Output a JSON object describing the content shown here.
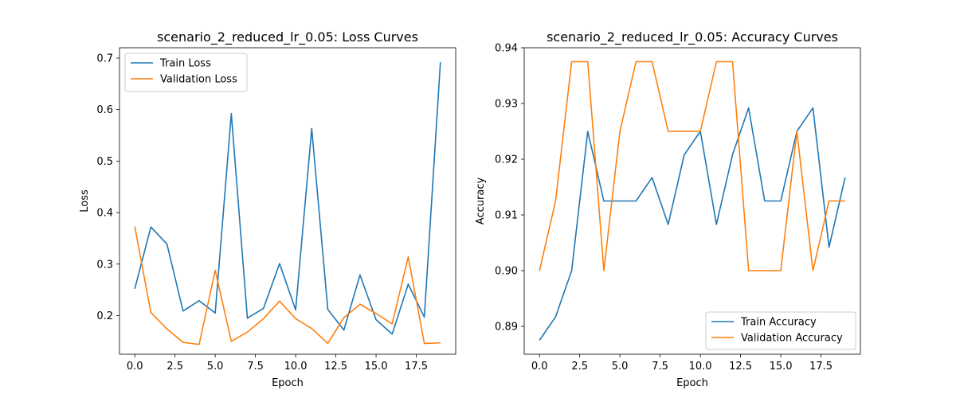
{
  "chart_data": [
    {
      "type": "line",
      "title": "scenario_2_reduced_lr_0.05: Loss Curves",
      "xlabel": "Epoch",
      "ylabel": "Loss",
      "xlim": [
        -0.95,
        19.95
      ],
      "ylim": [
        0.125,
        0.72
      ],
      "xticks": [
        0,
        2.5,
        5,
        7.5,
        10,
        12.5,
        15,
        17.5
      ],
      "xtick_labels": [
        "0.0",
        "2.5",
        "5.0",
        "7.5",
        "10.0",
        "12.5",
        "15.0",
        "17.5"
      ],
      "yticks": [
        0.2,
        0.3,
        0.4,
        0.5,
        0.6,
        0.7
      ],
      "ytick_labels": [
        "0.2",
        "0.3",
        "0.4",
        "0.5",
        "0.6",
        "0.7"
      ],
      "legend_position": "upper-left",
      "x": [
        0,
        1,
        2,
        3,
        4,
        5,
        6,
        7,
        8,
        9,
        10,
        11,
        12,
        13,
        14,
        15,
        16,
        17,
        18,
        19
      ],
      "series": [
        {
          "name": "Train Loss",
          "color": "#1f77b4",
          "values": [
            0.252,
            0.372,
            0.339,
            0.209,
            0.229,
            0.205,
            0.592,
            0.195,
            0.214,
            0.301,
            0.211,
            0.563,
            0.212,
            0.172,
            0.279,
            0.192,
            0.164,
            0.261,
            0.197,
            0.692
          ]
        },
        {
          "name": "Validation Loss",
          "color": "#ff7f0e",
          "values": [
            0.373,
            0.206,
            0.174,
            0.148,
            0.144,
            0.288,
            0.15,
            0.168,
            0.194,
            0.228,
            0.194,
            0.175,
            0.146,
            0.196,
            0.222,
            0.204,
            0.184,
            0.314,
            0.146,
            0.147
          ]
        }
      ]
    },
    {
      "type": "line",
      "title": "scenario_2_reduced_lr_0.05: Accuracy Curves",
      "xlabel": "Epoch",
      "ylabel": "Accuracy",
      "xlim": [
        -0.95,
        19.95
      ],
      "ylim": [
        0.885,
        0.94
      ],
      "xticks": [
        0,
        2.5,
        5,
        7.5,
        10,
        12.5,
        15,
        17.5
      ],
      "xtick_labels": [
        "0.0",
        "2.5",
        "5.0",
        "7.5",
        "10.0",
        "12.5",
        "15.0",
        "17.5"
      ],
      "yticks": [
        0.89,
        0.9,
        0.91,
        0.92,
        0.93,
        0.94
      ],
      "ytick_labels": [
        "0.89",
        "0.90",
        "0.91",
        "0.92",
        "0.93",
        "0.94"
      ],
      "legend_position": "lower-right",
      "x": [
        0,
        1,
        2,
        3,
        4,
        5,
        6,
        7,
        8,
        9,
        10,
        11,
        12,
        13,
        14,
        15,
        16,
        17,
        18,
        19
      ],
      "series": [
        {
          "name": "Train Accuracy",
          "color": "#1f77b4",
          "values": [
            0.8875,
            0.8917,
            0.9,
            0.925,
            0.9125,
            0.9125,
            0.9125,
            0.9167,
            0.9083,
            0.9208,
            0.925,
            0.9083,
            0.9208,
            0.9292,
            0.9125,
            0.9125,
            0.925,
            0.9292,
            0.9042,
            0.9167
          ]
        },
        {
          "name": "Validation Accuracy",
          "color": "#ff7f0e",
          "values": [
            0.9,
            0.9125,
            0.9375,
            0.9375,
            0.9,
            0.925,
            0.9375,
            0.9375,
            0.925,
            0.925,
            0.925,
            0.9375,
            0.9375,
            0.9,
            0.9,
            0.9,
            0.925,
            0.9,
            0.9125,
            0.9125
          ]
        }
      ]
    }
  ]
}
